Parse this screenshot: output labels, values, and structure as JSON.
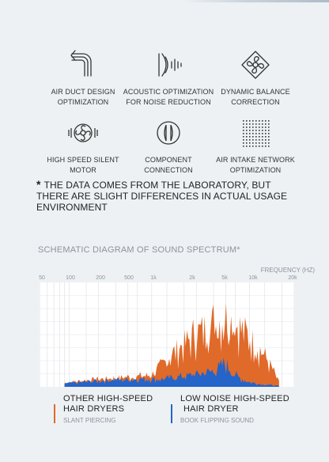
{
  "features": [
    {
      "icon": "air-duct-icon",
      "line1": "AIR DUCT DESIGN",
      "line2": "OPTIMIZATION"
    },
    {
      "icon": "acoustic-icon",
      "line1": "ACOUSTIC OPTIMIZATION",
      "line2": "FOR NOISE REDUCTION"
    },
    {
      "icon": "fan-balance-icon",
      "line1": "DYNAMIC BALANCE",
      "line2": "CORRECTION"
    },
    {
      "icon": "motor-icon",
      "line1": "HIGH SPEED SILENT",
      "line2": "MOTOR"
    },
    {
      "icon": "connector-icon",
      "line1": "COMPONENT",
      "line2": "CONNECTION"
    },
    {
      "icon": "intake-grid-icon",
      "line1": "AIR INTAKE NETWORK",
      "line2": "OPTIMIZATION"
    }
  ],
  "note": {
    "asterisk": "*",
    "text": "THE DATA COMES FROM THE LABORATORY, BUT THERE ARE SLIGHT DIFFERENCES IN ACTUAL USAGE ENVIRONMENT"
  },
  "chart": {
    "title": "SCHEMATIC DIAGRAM OF SOUND SPECTRUM*",
    "axis_label": "FREQUENCY (HZ)",
    "ticks": [
      "50",
      "100",
      "200",
      "500",
      "1k",
      "2k",
      "5k",
      "10k",
      "20k"
    ]
  },
  "chart_data": {
    "type": "area",
    "xlabel": "FREQUENCY (HZ)",
    "x_scale": "log",
    "xlim": [
      50,
      20000
    ],
    "x_ticks": [
      "50",
      "100",
      "200",
      "500",
      "1k",
      "2k",
      "5k",
      "10k",
      "20k"
    ],
    "series": [
      {
        "name": "OTHER HIGH-SPEED HAIR DRYERS",
        "color": "#e06a2a",
        "x": [
          90,
          140,
          220,
          350,
          500,
          700,
          900,
          1100,
          1400,
          1800,
          2200,
          2700,
          3300,
          4000,
          4800,
          5800,
          7000,
          8500,
          10000,
          12000,
          14000
        ],
        "values": [
          5,
          8,
          10,
          12,
          13,
          15,
          28,
          40,
          52,
          62,
          70,
          78,
          82,
          85,
          82,
          74,
          62,
          50,
          40,
          22,
          6
        ]
      },
      {
        "name": "LOW NOISE HIGH-SPEED HAIR DRYER",
        "color": "#2564c8",
        "x": [
          90,
          140,
          220,
          350,
          500,
          700,
          900,
          1100,
          1400,
          1800,
          2200,
          2700,
          3300,
          4000,
          4800,
          5800,
          7000,
          8500,
          10000,
          12000,
          14000
        ],
        "values": [
          4,
          6,
          8,
          9,
          10,
          10,
          10,
          11,
          13,
          15,
          17,
          19,
          22,
          30,
          16,
          10,
          6,
          4,
          3,
          2,
          1
        ]
      }
    ]
  },
  "legend": [
    {
      "title1": "OTHER HIGH-SPEED",
      "title2": "HAIR DRYERS",
      "sub": "SLANT PIERCING",
      "color": "#e06a2a"
    },
    {
      "title1": "LOW NOISE HIGH-SPEED",
      "title2": "HAIR DRYER",
      "sub": "BOOK FLIPPING SOUND",
      "color": "#2564c8"
    }
  ]
}
